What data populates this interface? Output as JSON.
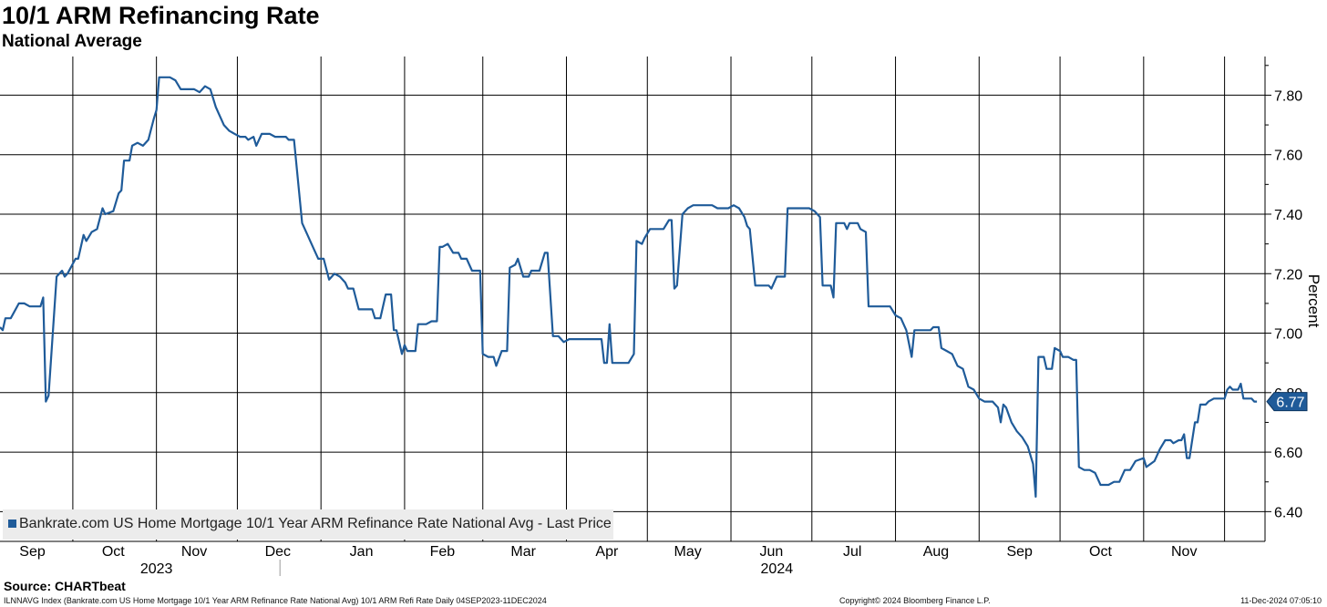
{
  "header": {
    "title": "10/1 ARM Refinancing Rate",
    "subtitle": "National Average"
  },
  "legend": {
    "label": "Bankrate.com US Home Mortgage 10/1 Year ARM Refinance Rate National Avg - Last Price"
  },
  "source": "Source: CHARTbeat",
  "footer": {
    "left": "ILNNAVG Index (Bankrate.com US Home Mortgage 10/1 Year ARM Refinance Rate National Avg) 10/1 ARM Refi Rate  Daily 04SEP2023-11DEC2024",
    "middle": "Copyright© 2024 Bloomberg Finance L.P.",
    "right": "11-Dec-2024 07:05:10"
  },
  "colors": {
    "line": "#1f5b99",
    "grid": "#000000",
    "legend_bg": "#ececec"
  },
  "chart_data": {
    "type": "line",
    "title": "10/1 ARM Refinancing Rate",
    "subtitle": "National Average",
    "ylabel": "Percent",
    "ylim": [
      6.3,
      7.93
    ],
    "yticks": [
      "6.40",
      "6.60",
      "6.80",
      "7.00",
      "7.20",
      "7.40",
      "7.60",
      "7.80"
    ],
    "xlim": [
      "2023-09-04",
      "2024-12-16"
    ],
    "month_labels": [
      {
        "label": "Sep",
        "date": "2023-09-16"
      },
      {
        "label": "Oct",
        "date": "2023-10-16"
      },
      {
        "label": "Nov",
        "date": "2023-11-15"
      },
      {
        "label": "Dec",
        "date": "2023-12-16"
      },
      {
        "label": "Jan",
        "date": "2024-01-16"
      },
      {
        "label": "Feb",
        "date": "2024-02-15"
      },
      {
        "label": "Mar",
        "date": "2024-03-16"
      },
      {
        "label": "Apr",
        "date": "2024-04-16"
      },
      {
        "label": "May",
        "date": "2024-05-16"
      },
      {
        "label": "Jun",
        "date": "2024-06-16"
      },
      {
        "label": "Jul",
        "date": "2024-07-16"
      },
      {
        "label": "Aug",
        "date": "2024-08-16"
      },
      {
        "label": "Sep",
        "date": "2024-09-16"
      },
      {
        "label": "Oct",
        "date": "2024-10-16"
      },
      {
        "label": "Nov",
        "date": "2024-11-16"
      }
    ],
    "gridline_dates": [
      "2023-10-01",
      "2023-11-01",
      "2023-12-01",
      "2024-01-01",
      "2024-02-01",
      "2024-03-01",
      "2024-04-01",
      "2024-05-01",
      "2024-06-01",
      "2024-07-01",
      "2024-08-01",
      "2024-09-01",
      "2024-10-01",
      "2024-11-01",
      "2024-12-01"
    ],
    "year_labels": [
      {
        "label": "2023",
        "date": "2023-11-01"
      },
      {
        "label": "2024",
        "date": "2024-06-18"
      }
    ],
    "year_separator_date": "2024-01-01",
    "last_value_label": "6.77",
    "series": [
      {
        "name": "Bankrate.com US Home Mortgage 10/1 Year ARM Refinance Rate National Avg - Last Price",
        "points": [
          [
            "2023-09-04",
            7.02
          ],
          [
            "2023-09-05",
            7.01
          ],
          [
            "2023-09-06",
            7.05
          ],
          [
            "2023-09-08",
            7.05
          ],
          [
            "2023-09-11",
            7.1
          ],
          [
            "2023-09-13",
            7.1
          ],
          [
            "2023-09-15",
            7.09
          ],
          [
            "2023-09-19",
            7.09
          ],
          [
            "2023-09-20",
            7.12
          ],
          [
            "2023-09-21",
            6.77
          ],
          [
            "2023-09-22",
            6.79
          ],
          [
            "2023-09-25",
            7.19
          ],
          [
            "2023-09-27",
            7.21
          ],
          [
            "2023-09-28",
            7.19
          ],
          [
            "2023-09-29",
            7.2
          ],
          [
            "2023-10-02",
            7.25
          ],
          [
            "2023-10-03",
            7.25
          ],
          [
            "2023-10-05",
            7.33
          ],
          [
            "2023-10-06",
            7.31
          ],
          [
            "2023-10-08",
            7.34
          ],
          [
            "2023-10-10",
            7.35
          ],
          [
            "2023-10-12",
            7.42
          ],
          [
            "2023-10-13",
            7.4
          ],
          [
            "2023-10-16",
            7.41
          ],
          [
            "2023-10-18",
            7.47
          ],
          [
            "2023-10-19",
            7.48
          ],
          [
            "2023-10-20",
            7.58
          ],
          [
            "2023-10-22",
            7.58
          ],
          [
            "2023-10-23",
            7.63
          ],
          [
            "2023-10-25",
            7.64
          ],
          [
            "2023-10-27",
            7.63
          ],
          [
            "2023-10-29",
            7.65
          ],
          [
            "2023-10-31",
            7.72
          ],
          [
            "2023-11-01",
            7.75
          ],
          [
            "2023-11-02",
            7.86
          ],
          [
            "2023-11-06",
            7.86
          ],
          [
            "2023-11-08",
            7.85
          ],
          [
            "2023-11-10",
            7.82
          ],
          [
            "2023-11-15",
            7.82
          ],
          [
            "2023-11-17",
            7.81
          ],
          [
            "2023-11-19",
            7.83
          ],
          [
            "2023-11-21",
            7.82
          ],
          [
            "2023-11-23",
            7.76
          ],
          [
            "2023-11-26",
            7.7
          ],
          [
            "2023-11-28",
            7.68
          ],
          [
            "2023-11-30",
            7.67
          ],
          [
            "2023-12-02",
            7.66
          ],
          [
            "2023-12-04",
            7.66
          ],
          [
            "2023-12-05",
            7.65
          ],
          [
            "2023-12-07",
            7.66
          ],
          [
            "2023-12-08",
            7.63
          ],
          [
            "2023-12-10",
            7.67
          ],
          [
            "2023-12-13",
            7.67
          ],
          [
            "2023-12-15",
            7.66
          ],
          [
            "2023-12-19",
            7.66
          ],
          [
            "2023-12-20",
            7.65
          ],
          [
            "2023-12-22",
            7.65
          ],
          [
            "2023-12-25",
            7.37
          ],
          [
            "2023-12-27",
            7.33
          ],
          [
            "2023-12-29",
            7.29
          ],
          [
            "2023-12-31",
            7.25
          ],
          [
            "2024-01-02",
            7.25
          ],
          [
            "2024-01-04",
            7.18
          ],
          [
            "2024-01-06",
            7.2
          ],
          [
            "2024-01-08",
            7.19
          ],
          [
            "2024-01-10",
            7.17
          ],
          [
            "2024-01-11",
            7.15
          ],
          [
            "2024-01-13",
            7.15
          ],
          [
            "2024-01-15",
            7.08
          ],
          [
            "2024-01-20",
            7.08
          ],
          [
            "2024-01-21",
            7.05
          ],
          [
            "2024-01-23",
            7.05
          ],
          [
            "2024-01-25",
            7.13
          ],
          [
            "2024-01-27",
            7.13
          ],
          [
            "2024-01-28",
            7.01
          ],
          [
            "2024-01-29",
            7.01
          ],
          [
            "2024-01-31",
            6.93
          ],
          [
            "2024-02-01",
            6.96
          ],
          [
            "2024-02-02",
            6.94
          ],
          [
            "2024-02-05",
            6.94
          ],
          [
            "2024-02-06",
            7.03
          ],
          [
            "2024-02-09",
            7.03
          ],
          [
            "2024-02-11",
            7.04
          ],
          [
            "2024-02-13",
            7.04
          ],
          [
            "2024-02-14",
            7.29
          ],
          [
            "2024-02-15",
            7.29
          ],
          [
            "2024-02-17",
            7.3
          ],
          [
            "2024-02-19",
            7.27
          ],
          [
            "2024-02-21",
            7.27
          ],
          [
            "2024-02-22",
            7.25
          ],
          [
            "2024-02-24",
            7.25
          ],
          [
            "2024-02-26",
            7.21
          ],
          [
            "2024-02-29",
            7.21
          ],
          [
            "2024-03-01",
            6.93
          ],
          [
            "2024-03-03",
            6.92
          ],
          [
            "2024-03-05",
            6.92
          ],
          [
            "2024-03-06",
            6.89
          ],
          [
            "2024-03-08",
            6.94
          ],
          [
            "2024-03-10",
            6.94
          ],
          [
            "2024-03-11",
            7.22
          ],
          [
            "2024-03-13",
            7.23
          ],
          [
            "2024-03-14",
            7.25
          ],
          [
            "2024-03-16",
            7.19
          ],
          [
            "2024-03-18",
            7.19
          ],
          [
            "2024-03-19",
            7.21
          ],
          [
            "2024-03-22",
            7.21
          ],
          [
            "2024-03-24",
            7.27
          ],
          [
            "2024-03-25",
            7.27
          ],
          [
            "2024-03-27",
            6.99
          ],
          [
            "2024-03-29",
            6.99
          ],
          [
            "2024-03-31",
            6.97
          ],
          [
            "2024-04-02",
            6.98
          ],
          [
            "2024-04-14",
            6.98
          ],
          [
            "2024-04-15",
            6.9
          ],
          [
            "2024-04-16",
            6.9
          ],
          [
            "2024-04-17",
            7.03
          ],
          [
            "2024-04-18",
            6.9
          ],
          [
            "2024-04-24",
            6.9
          ],
          [
            "2024-04-26",
            6.93
          ],
          [
            "2024-04-27",
            7.31
          ],
          [
            "2024-04-29",
            7.3
          ],
          [
            "2024-04-30",
            7.32
          ],
          [
            "2024-05-02",
            7.35
          ],
          [
            "2024-05-07",
            7.35
          ],
          [
            "2024-05-09",
            7.38
          ],
          [
            "2024-05-10",
            7.38
          ],
          [
            "2024-05-11",
            7.15
          ],
          [
            "2024-05-12",
            7.16
          ],
          [
            "2024-05-14",
            7.4
          ],
          [
            "2024-05-16",
            7.42
          ],
          [
            "2024-05-18",
            7.43
          ],
          [
            "2024-05-25",
            7.43
          ],
          [
            "2024-05-27",
            7.42
          ],
          [
            "2024-05-31",
            7.42
          ],
          [
            "2024-06-02",
            7.43
          ],
          [
            "2024-06-04",
            7.42
          ],
          [
            "2024-06-06",
            7.39
          ],
          [
            "2024-06-07",
            7.36
          ],
          [
            "2024-06-08",
            7.35
          ],
          [
            "2024-06-10",
            7.16
          ],
          [
            "2024-06-15",
            7.16
          ],
          [
            "2024-06-16",
            7.15
          ],
          [
            "2024-06-18",
            7.19
          ],
          [
            "2024-06-21",
            7.19
          ],
          [
            "2024-06-22",
            7.42
          ],
          [
            "2024-06-30",
            7.42
          ],
          [
            "2024-07-02",
            7.41
          ],
          [
            "2024-07-04",
            7.39
          ],
          [
            "2024-07-05",
            7.16
          ],
          [
            "2024-07-08",
            7.16
          ],
          [
            "2024-07-09",
            7.12
          ],
          [
            "2024-07-10",
            7.37
          ],
          [
            "2024-07-13",
            7.37
          ],
          [
            "2024-07-14",
            7.35
          ],
          [
            "2024-07-15",
            7.37
          ],
          [
            "2024-07-18",
            7.37
          ],
          [
            "2024-07-19",
            7.35
          ],
          [
            "2024-07-21",
            7.34
          ],
          [
            "2024-07-22",
            7.09
          ],
          [
            "2024-07-30",
            7.09
          ],
          [
            "2024-08-01",
            7.06
          ],
          [
            "2024-08-03",
            7.05
          ],
          [
            "2024-08-05",
            7.01
          ],
          [
            "2024-08-07",
            6.92
          ],
          [
            "2024-08-08",
            7.01
          ],
          [
            "2024-08-14",
            7.01
          ],
          [
            "2024-08-15",
            7.02
          ],
          [
            "2024-08-17",
            7.02
          ],
          [
            "2024-08-18",
            6.95
          ],
          [
            "2024-08-20",
            6.94
          ],
          [
            "2024-08-22",
            6.93
          ],
          [
            "2024-08-24",
            6.89
          ],
          [
            "2024-08-26",
            6.88
          ],
          [
            "2024-08-28",
            6.82
          ],
          [
            "2024-08-30",
            6.81
          ],
          [
            "2024-09-01",
            6.78
          ],
          [
            "2024-09-03",
            6.77
          ],
          [
            "2024-09-06",
            6.77
          ],
          [
            "2024-09-08",
            6.75
          ],
          [
            "2024-09-09",
            6.7
          ],
          [
            "2024-09-10",
            6.76
          ],
          [
            "2024-09-11",
            6.75
          ],
          [
            "2024-09-13",
            6.7
          ],
          [
            "2024-09-15",
            6.67
          ],
          [
            "2024-09-17",
            6.65
          ],
          [
            "2024-09-19",
            6.62
          ],
          [
            "2024-09-21",
            6.56
          ],
          [
            "2024-09-22",
            6.45
          ],
          [
            "2024-09-23",
            6.92
          ],
          [
            "2024-09-25",
            6.92
          ],
          [
            "2024-09-26",
            6.88
          ],
          [
            "2024-09-28",
            6.88
          ],
          [
            "2024-09-29",
            6.95
          ],
          [
            "2024-10-01",
            6.94
          ],
          [
            "2024-10-02",
            6.92
          ],
          [
            "2024-10-04",
            6.92
          ],
          [
            "2024-10-06",
            6.91
          ],
          [
            "2024-10-07",
            6.91
          ],
          [
            "2024-10-08",
            6.55
          ],
          [
            "2024-10-10",
            6.54
          ],
          [
            "2024-10-12",
            6.54
          ],
          [
            "2024-10-14",
            6.53
          ],
          [
            "2024-10-16",
            6.49
          ],
          [
            "2024-10-19",
            6.49
          ],
          [
            "2024-10-21",
            6.5
          ],
          [
            "2024-10-23",
            6.5
          ],
          [
            "2024-10-25",
            6.54
          ],
          [
            "2024-10-27",
            6.54
          ],
          [
            "2024-10-29",
            6.57
          ],
          [
            "2024-11-01",
            6.58
          ],
          [
            "2024-11-02",
            6.55
          ],
          [
            "2024-11-05",
            6.57
          ],
          [
            "2024-11-07",
            6.61
          ],
          [
            "2024-11-09",
            6.64
          ],
          [
            "2024-11-11",
            6.64
          ],
          [
            "2024-11-12",
            6.63
          ],
          [
            "2024-11-14",
            6.64
          ],
          [
            "2024-11-15",
            6.64
          ],
          [
            "2024-11-16",
            6.66
          ],
          [
            "2024-11-17",
            6.58
          ],
          [
            "2024-11-18",
            6.58
          ],
          [
            "2024-11-20",
            6.7
          ],
          [
            "2024-11-21",
            6.7
          ],
          [
            "2024-11-22",
            6.76
          ],
          [
            "2024-11-24",
            6.76
          ],
          [
            "2024-11-25",
            6.77
          ],
          [
            "2024-11-27",
            6.78
          ],
          [
            "2024-12-01",
            6.78
          ],
          [
            "2024-12-02",
            6.81
          ],
          [
            "2024-12-03",
            6.82
          ],
          [
            "2024-12-04",
            6.81
          ],
          [
            "2024-12-06",
            6.81
          ],
          [
            "2024-12-07",
            6.83
          ],
          [
            "2024-12-08",
            6.78
          ],
          [
            "2024-12-10",
            6.78
          ],
          [
            "2024-12-11",
            6.78
          ],
          [
            "2024-12-12",
            6.77
          ],
          [
            "2024-12-13",
            6.77
          ]
        ]
      }
    ]
  }
}
